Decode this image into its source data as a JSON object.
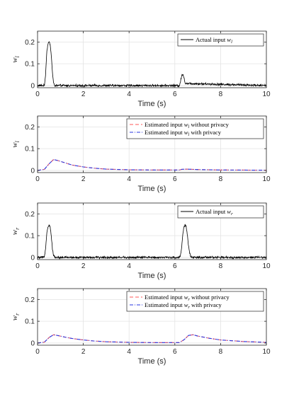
{
  "chart_data": [
    {
      "type": "line",
      "xlabel": "Time (s)",
      "ylabel": "w_l",
      "xlim": [
        0,
        10
      ],
      "ylim": [
        -0.01,
        0.25
      ],
      "xticks": [
        0,
        2,
        4,
        6,
        8,
        10
      ],
      "yticks": [
        0,
        0.1,
        0.2
      ],
      "grid": true,
      "legend_position": "top-right",
      "series": [
        {
          "name": "Actual input w_l",
          "legend_label": "Actual input",
          "legend_symbol": "w_l",
          "color": "#000000",
          "style": "solid",
          "x": [
            0,
            0.3,
            0.35,
            0.4,
            0.45,
            0.5,
            0.55,
            0.6,
            0.65,
            0.7,
            0.75,
            6.2,
            6.25,
            6.3,
            6.35,
            6.4,
            6.45,
            10
          ],
          "y": [
            0,
            0,
            0.05,
            0.15,
            0.19,
            0.2,
            0.19,
            0.14,
            0.06,
            0.01,
            0,
            0,
            0.02,
            0.045,
            0.05,
            0.04,
            0.01,
            0
          ],
          "noise": 0.004
        }
      ]
    },
    {
      "type": "line",
      "xlabel": "Time (s)",
      "ylabel": "w_l",
      "xlim": [
        0,
        10
      ],
      "ylim": [
        -0.01,
        0.25
      ],
      "xticks": [
        0,
        2,
        4,
        6,
        8,
        10
      ],
      "yticks": [
        0,
        0.1,
        0.2
      ],
      "grid": true,
      "legend_position": "top-right",
      "series": [
        {
          "name": "Estimated input w_l without privacy",
          "legend_label": "Estimated input",
          "legend_symbol": "w_l",
          "legend_suffix": "without privacy",
          "color": "#ff5a5a",
          "style": "dashed",
          "x": [
            0,
            0.3,
            0.5,
            0.7,
            0.9,
            1.2,
            1.5,
            2,
            2.5,
            3,
            4,
            5,
            6.2,
            6.3,
            6.5,
            7,
            8,
            10
          ],
          "y": [
            0,
            0.005,
            0.03,
            0.05,
            0.045,
            0.035,
            0.025,
            0.016,
            0.01,
            0.006,
            0.003,
            0.002,
            0.002,
            0.005,
            0.006,
            0.004,
            0.002,
            0.001
          ]
        },
        {
          "name": "Estimated input w_l with privacy",
          "legend_label": "Estimated input",
          "legend_symbol": "w_l",
          "legend_suffix": "with privacy",
          "color": "#2a36e0",
          "style": "dashdot",
          "x": [
            0,
            0.3,
            0.5,
            0.7,
            0.9,
            1.2,
            1.5,
            2,
            2.5,
            3,
            4,
            5,
            6.2,
            6.3,
            6.5,
            7,
            8,
            10
          ],
          "y": [
            0,
            0.005,
            0.03,
            0.05,
            0.045,
            0.035,
            0.025,
            0.016,
            0.01,
            0.006,
            0.003,
            0.002,
            0.002,
            0.005,
            0.006,
            0.004,
            0.002,
            0.001
          ]
        }
      ]
    },
    {
      "type": "line",
      "xlabel": "Time (s)",
      "ylabel": "w_r",
      "xlim": [
        0,
        10
      ],
      "ylim": [
        -0.01,
        0.25
      ],
      "xticks": [
        0,
        2,
        4,
        6,
        8,
        10
      ],
      "yticks": [
        0,
        0.1,
        0.2
      ],
      "grid": true,
      "legend_position": "top-right",
      "series": [
        {
          "name": "Actual input w_r",
          "legend_label": "Actual input",
          "legend_symbol": "w_r",
          "color": "#000000",
          "style": "solid",
          "x": [
            0,
            0.3,
            0.35,
            0.4,
            0.45,
            0.5,
            0.55,
            0.6,
            0.65,
            0.7,
            0.75,
            6.2,
            6.25,
            6.3,
            6.35,
            6.4,
            6.45,
            6.5,
            6.55,
            6.6,
            6.65,
            6.7,
            6.75,
            10
          ],
          "y": [
            0,
            0,
            0.04,
            0.11,
            0.14,
            0.15,
            0.14,
            0.1,
            0.04,
            0.01,
            0,
            0,
            0.01,
            0.05,
            0.11,
            0.14,
            0.15,
            0.14,
            0.1,
            0.05,
            0.02,
            0,
            0,
            0
          ],
          "noise": 0.004
        }
      ]
    },
    {
      "type": "line",
      "xlabel": "Time (s)",
      "ylabel": "w_r",
      "xlim": [
        0,
        10
      ],
      "ylim": [
        -0.01,
        0.25
      ],
      "xticks": [
        0,
        2,
        4,
        6,
        8,
        10
      ],
      "yticks": [
        0,
        0.1,
        0.2
      ],
      "grid": true,
      "legend_position": "top-right",
      "series": [
        {
          "name": "Estimated input w_r without privacy",
          "legend_label": "Estimated input",
          "legend_symbol": "w_r",
          "legend_suffix": "without privacy",
          "color": "#ff5a5a",
          "style": "dashed",
          "x": [
            0,
            0.3,
            0.5,
            0.7,
            0.9,
            1.2,
            1.5,
            2,
            2.5,
            3,
            4,
            5,
            6.2,
            6.4,
            6.6,
            6.8,
            7,
            7.5,
            8,
            9,
            10
          ],
          "y": [
            0,
            0.004,
            0.025,
            0.038,
            0.034,
            0.027,
            0.021,
            0.014,
            0.009,
            0.006,
            0.003,
            0.002,
            0.002,
            0.015,
            0.035,
            0.038,
            0.032,
            0.022,
            0.014,
            0.007,
            0.003
          ]
        },
        {
          "name": "Estimated input w_r with privacy",
          "legend_label": "Estimated input",
          "legend_symbol": "w_r",
          "legend_suffix": "with privacy",
          "color": "#2a36e0",
          "style": "dashdot",
          "x": [
            0,
            0.3,
            0.5,
            0.7,
            0.9,
            1.2,
            1.5,
            2,
            2.5,
            3,
            4,
            5,
            6.2,
            6.4,
            6.6,
            6.8,
            7,
            7.5,
            8,
            9,
            10
          ],
          "y": [
            0,
            0.004,
            0.025,
            0.038,
            0.034,
            0.027,
            0.021,
            0.014,
            0.009,
            0.006,
            0.003,
            0.002,
            0.002,
            0.015,
            0.035,
            0.038,
            0.032,
            0.022,
            0.014,
            0.007,
            0.003
          ]
        }
      ]
    }
  ]
}
